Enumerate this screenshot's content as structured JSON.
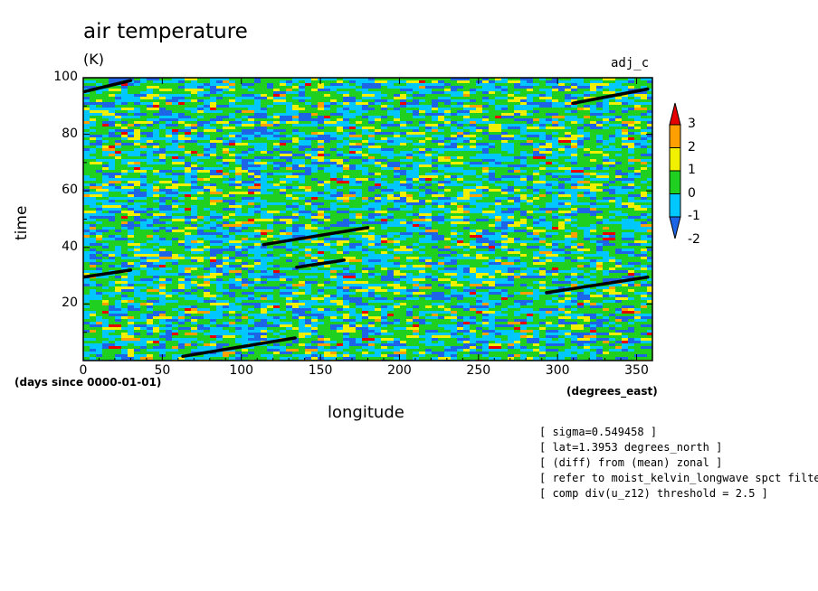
{
  "chart_data": {
    "type": "heatmap",
    "title": "air temperature",
    "units": "(K)",
    "subtitle": "adj_c",
    "xlabel": "longitude",
    "ylabel": "time",
    "x_units": "(degrees_east)",
    "y_units": "(days since 0000-01-01)",
    "xlim": [
      0,
      360
    ],
    "ylim": [
      0,
      100
    ],
    "x_ticks": [
      "0",
      "50",
      "100",
      "150",
      "200",
      "250",
      "300",
      "350"
    ],
    "x_tick_values": [
      0,
      50,
      100,
      150,
      200,
      250,
      300,
      350
    ],
    "y_ticks": [
      "20",
      "40",
      "60",
      "80",
      "100"
    ],
    "y_tick_values": [
      20,
      40,
      60,
      80,
      100
    ],
    "colorbar": {
      "labels": [
        "3",
        "2",
        "1",
        "0",
        "-1",
        "-2"
      ],
      "levels": [
        3,
        2,
        1,
        0,
        -1,
        -2
      ],
      "colors": [
        "#1e64e6",
        "#00c8ff",
        "#20d020",
        "#f0f000",
        "#ffa000",
        "#e60000"
      ]
    },
    "field_mix": {
      "cyan": 0.42,
      "green": 0.33,
      "blue": 0.14,
      "yellow": 0.08,
      "orange": 0.02,
      "red": 0.01
    },
    "black_segments": [
      {
        "lon": [
          0,
          30
        ],
        "time": [
          95,
          99
        ]
      },
      {
        "lon": [
          310,
          357
        ],
        "time": [
          91,
          96
        ]
      },
      {
        "lon": [
          114,
          180
        ],
        "time": [
          41,
          47
        ]
      },
      {
        "lon": [
          135,
          165
        ],
        "time": [
          33,
          35.5
        ]
      },
      {
        "lon": [
          0,
          30
        ],
        "time": [
          29.5,
          32
        ]
      },
      {
        "lon": [
          293,
          357
        ],
        "time": [
          24,
          29.5
        ]
      },
      {
        "lon": [
          63,
          134
        ],
        "time": [
          1.5,
          8
        ]
      }
    ],
    "notes": [
      "[ sigma=0.549458 ]",
      "[ lat=1.3953 degrees_north ]",
      "[ (diff) from (mean) zonal ]",
      "[ refer to moist_kelvin_longwave spct filter",
      "[ comp div(u_z12) threshold = 2.5 ]"
    ]
  }
}
